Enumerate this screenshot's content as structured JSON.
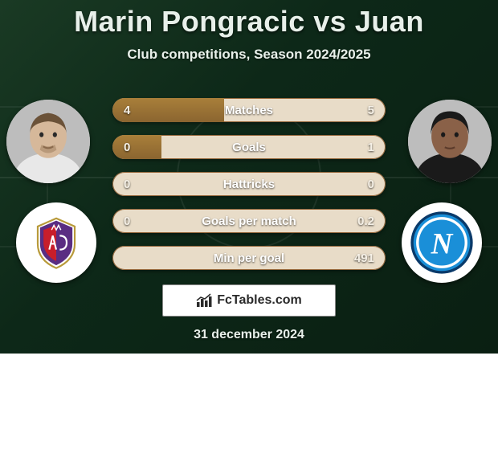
{
  "title": "Marin Pongracic vs Juan",
  "subtitle": "Club competitions, Season 2024/2025",
  "player_left": {
    "name": "Marin Pongracic",
    "skin": "#d6b89a",
    "hair": "#6b5238",
    "shirt": "#e8e8e8"
  },
  "player_right": {
    "name": "Juan",
    "skin": "#8a6148",
    "hair": "#1a1a1a",
    "shirt": "#1a1a1a"
  },
  "club_left": {
    "name": "Fiorentina",
    "primary": "#5a2d82",
    "secondary": "#c81e2b",
    "letters": "AC"
  },
  "club_right": {
    "name": "Napoli",
    "primary": "#1a8fd8",
    "secondary": "#ffffff",
    "letter": "N"
  },
  "bars": {
    "track_color": "#e8dcc8",
    "fill_color_top": "#a97f3a",
    "fill_color_bottom": "#8b6530",
    "text_color": "#ffffff",
    "rows": [
      {
        "label": "Matches",
        "left_text": "4",
        "right_text": "5",
        "left_pct": 41,
        "right_pct": 0
      },
      {
        "label": "Goals",
        "left_text": "0",
        "right_text": "1",
        "left_pct": 18,
        "right_pct": 0
      },
      {
        "label": "Hattricks",
        "left_text": "0",
        "right_text": "0",
        "left_pct": 0,
        "right_pct": 0
      },
      {
        "label": "Goals per match",
        "left_text": "0",
        "right_text": "0.2",
        "left_pct": 0,
        "right_pct": 0
      },
      {
        "label": "Min per goal",
        "left_text": "",
        "right_text": "491",
        "left_pct": 0,
        "right_pct": 0
      }
    ]
  },
  "footer": {
    "site": "FcTables.com",
    "date": "31 december 2024"
  },
  "colors": {
    "bg_grad_1": "#1a3a24",
    "bg_grad_2": "#0a1f12",
    "title_color": "#e8f0ea"
  }
}
